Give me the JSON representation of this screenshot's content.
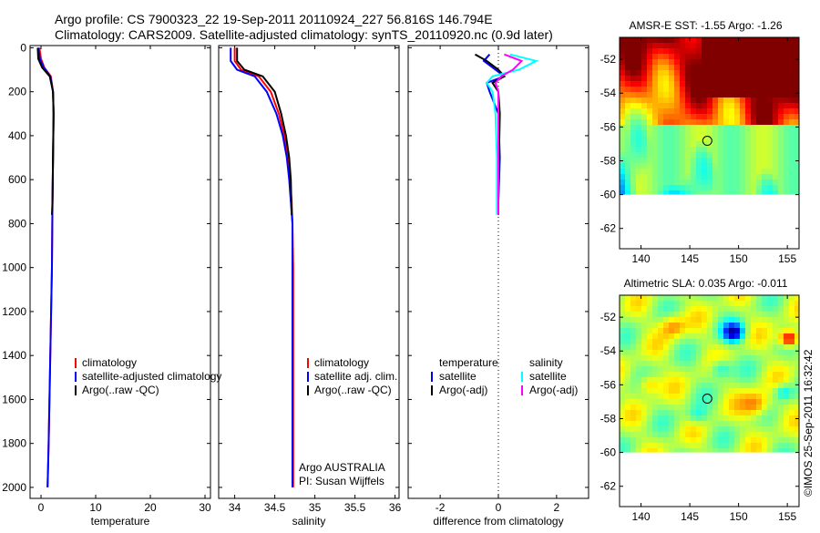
{
  "header": {
    "line1": "Argo profile: CS 7900323_22 19-Sep-2011 20110924_227 56.816S 146.794E",
    "line2": "Climatology: CARS2009. Satellite-adjusted climatology: synTS_20110920.nc (0.9d later)"
  },
  "credit": "©IMOS 25-Sep-2011 16:32:42",
  "colors": {
    "climatology": "#ff0000",
    "satellite": "#0000ff",
    "argo": "#000000",
    "sat_salinity": "#00ffff",
    "argo_salinity": "#ff00ff"
  },
  "chart_data": [
    {
      "type": "line",
      "xlabel": "temperature",
      "ylabel": "",
      "xlim": [
        -2,
        31
      ],
      "ylim": [
        2050,
        -10
      ],
      "x_ticks": [
        0,
        10,
        20,
        30
      ],
      "y_ticks": [
        0,
        200,
        400,
        600,
        800,
        1000,
        1200,
        1400,
        1600,
        1800,
        2000
      ],
      "legend": [
        "climatology",
        "satellite-adjusted climatology",
        "Argo(..raw -QC)"
      ],
      "series": [
        {
          "name": "climatology",
          "color": "#ff0000",
          "x": [
            -0.3,
            0.0,
            0.6,
            1.8,
            2.2,
            2.3,
            2.2,
            2.1,
            2.0,
            1.7,
            1.4,
            1.2
          ],
          "y": [
            0,
            50,
            90,
            130,
            200,
            300,
            500,
            700,
            1000,
            1400,
            1800,
            2000
          ]
        },
        {
          "name": "satellite-adjusted climatology",
          "color": "#0000ff",
          "x": [
            -0.5,
            -0.2,
            0.5,
            1.7,
            2.2,
            2.3,
            2.2,
            2.1,
            2.0,
            1.7,
            1.4,
            1.2
          ],
          "y": [
            0,
            50,
            90,
            130,
            200,
            300,
            500,
            700,
            1000,
            1400,
            1800,
            2000
          ]
        },
        {
          "name": "Argo(..raw -QC)",
          "color": "#000000",
          "x": [
            -0.6,
            -0.5,
            0.2,
            1.6,
            2.2,
            2.3,
            2.2,
            2.1,
            2.0
          ],
          "y": [
            0,
            50,
            90,
            130,
            200,
            300,
            500,
            700,
            760
          ]
        }
      ]
    },
    {
      "type": "line",
      "xlabel": "salinity",
      "ylabel": "",
      "xlim": [
        33.8,
        36.05
      ],
      "ylim": [
        2050,
        -10
      ],
      "x_ticks": [
        34,
        34.5,
        35,
        35.5,
        36
      ],
      "legend": [
        "climatology",
        "satellite adj. clim.",
        "Argo(..raw -QC)"
      ],
      "annotations": [
        "Argo AUSTRALIA",
        "PI: Susan Wijffels"
      ],
      "series": [
        {
          "name": "climatology",
          "color": "#ff0000",
          "x": [
            34.0,
            34.0,
            34.08,
            34.3,
            34.45,
            34.55,
            34.62,
            34.66,
            34.69,
            34.71,
            34.72,
            34.73,
            34.73
          ],
          "y": [
            0,
            60,
            100,
            130,
            200,
            300,
            400,
            500,
            600,
            700,
            800,
            1000,
            2000
          ]
        },
        {
          "name": "satellite adj. clim.",
          "color": "#0000ff",
          "x": [
            33.95,
            33.95,
            34.03,
            34.25,
            34.4,
            34.52,
            34.6,
            34.65,
            34.68,
            34.7,
            34.72,
            34.72,
            34.72
          ],
          "y": [
            0,
            60,
            100,
            130,
            200,
            300,
            400,
            500,
            600,
            700,
            800,
            1000,
            2000
          ]
        },
        {
          "name": "Argo(..raw -QC)",
          "color": "#000000",
          "x": [
            34.03,
            34.03,
            34.12,
            34.35,
            34.5,
            34.58,
            34.64,
            34.68,
            34.7,
            34.71
          ],
          "y": [
            0,
            60,
            100,
            130,
            200,
            300,
            400,
            500,
            600,
            760
          ]
        }
      ]
    },
    {
      "type": "line",
      "xlabel": "difference from climatology",
      "ylabel": "",
      "xlim": [
        -3.1,
        3.1
      ],
      "ylim": [
        2050,
        -10
      ],
      "x_ticks": [
        -2,
        0,
        2
      ],
      "zero_line": "dotted",
      "legend_groups": [
        {
          "title": "temperature",
          "items": [
            "satellite",
            "Argo(-adj)"
          ]
        },
        {
          "title": "salinity",
          "items": [
            "satellite",
            "Argo(-adj)"
          ]
        }
      ],
      "series": [
        {
          "name": "temperature satellite",
          "color": "#0000ff",
          "x": [
            -0.3,
            -0.5,
            -0.1,
            0.2,
            -0.4,
            -0.3,
            0.0,
            0.05,
            0.0,
            0.0
          ],
          "y": [
            30,
            60,
            100,
            130,
            160,
            200,
            300,
            500,
            700,
            760
          ]
        },
        {
          "name": "temperature Argo(-adj)",
          "color": "#000000",
          "x": [
            -0.8,
            -0.4,
            0.0,
            0.2,
            -0.2,
            0.0,
            0.05,
            0.02,
            0.0,
            0.0
          ],
          "y": [
            30,
            60,
            100,
            130,
            160,
            200,
            300,
            500,
            700,
            760
          ]
        },
        {
          "name": "salinity satellite",
          "color": "#00ffff",
          "x": [
            0.4,
            1.3,
            0.7,
            -0.2,
            -0.4,
            -0.2,
            -0.1,
            -0.05,
            -0.05,
            -0.05
          ],
          "y": [
            30,
            60,
            100,
            130,
            160,
            200,
            300,
            500,
            700,
            760
          ]
        },
        {
          "name": "salinity Argo(-adj)",
          "color": "#ff00ff",
          "x": [
            0.2,
            0.8,
            0.5,
            0.1,
            -0.1,
            0.0,
            0.0,
            0.0,
            0.0,
            0.0
          ],
          "y": [
            30,
            60,
            100,
            130,
            160,
            200,
            300,
            500,
            700,
            760
          ]
        }
      ]
    },
    {
      "type": "heatmap",
      "title": "AMSR-E SST: -1.55 Argo: -1.26",
      "xlim": [
        137.8,
        156.2
      ],
      "ylim": [
        -63.2,
        -50.7
      ],
      "x_ticks": [
        140,
        145,
        150,
        155
      ],
      "y_ticks": [
        -52,
        -54,
        -56,
        -58,
        -60,
        -62
      ],
      "marker": {
        "lon": 146.794,
        "lat": -56.816
      },
      "data_extent_lat": [
        -60,
        -50.7
      ]
    },
    {
      "type": "heatmap",
      "title": "Altimetric SLA: 0.035 Argo: -0.011",
      "xlim": [
        137.8,
        156.2
      ],
      "ylim": [
        -63.2,
        -50.7
      ],
      "x_ticks": [
        140,
        145,
        150,
        155
      ],
      "y_ticks": [
        -52,
        -54,
        -56,
        -58,
        -60,
        -62
      ],
      "marker": {
        "lon": 146.794,
        "lat": -56.816
      },
      "data_extent_lat": [
        -60,
        -50.7
      ]
    }
  ]
}
